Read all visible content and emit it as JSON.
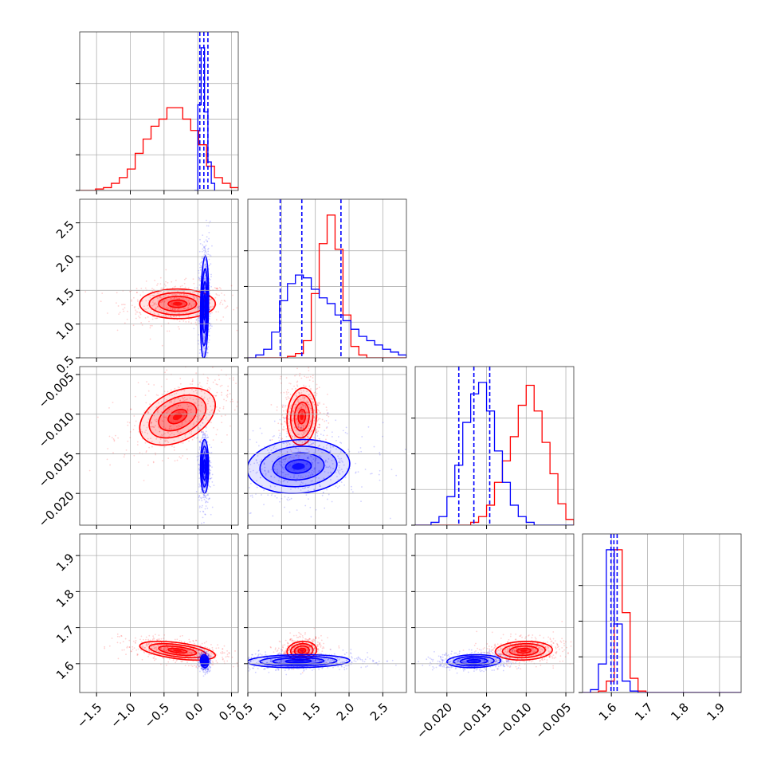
{
  "chart_data": {
    "type": "corner",
    "params": [
      {
        "lim": [
          -1.75,
          0.6
        ],
        "ticks": [
          -1.5,
          -1.0,
          -0.5,
          0.0,
          0.5
        ],
        "tick_labels": [
          "−1.5",
          "−1.0",
          "−0.5",
          "0.0",
          "0.5"
        ]
      },
      {
        "lim": [
          0.5,
          2.85
        ],
        "ticks": [
          0.5,
          1.0,
          1.5,
          2.0,
          2.5
        ],
        "tick_labels": [
          "0.5",
          "1.0",
          "1.5",
          "2.0",
          "2.5"
        ]
      },
      {
        "lim": [
          -0.024,
          -0.004
        ],
        "ticks": [
          -0.02,
          -0.015,
          -0.01,
          -0.005
        ],
        "tick_labels": [
          "−0.020",
          "−0.015",
          "−0.010",
          "−0.005"
        ]
      },
      {
        "lim": [
          1.52,
          1.96
        ],
        "ticks": [
          1.6,
          1.7,
          1.8,
          1.9
        ],
        "tick_labels": [
          "1.6",
          "1.7",
          "1.8",
          "1.9"
        ]
      }
    ],
    "colors": {
      "red": "#ff0000",
      "blue": "#0000ff",
      "grid": "#b0b0b0"
    },
    "grid": true,
    "series": [
      {
        "color": "red",
        "mean": [
          -0.3,
          1.3,
          -0.0103,
          1.636
        ],
        "sd": [
          0.28,
          0.11,
          0.0018,
          0.013
        ],
        "corr": {
          "0-1": 0.0,
          "0-2": 0.4,
          "0-3": -0.5,
          "1-2": 0.1,
          "1-3": 0.1,
          "2-3": 0.1
        },
        "hist": [
          {
            "edges": [
              -1.75,
              0.6
            ],
            "counts": [
              0,
              0,
              1,
              2,
              5,
              9,
              15,
              26,
              36,
              45,
              50,
              58,
              58,
              50,
              42,
              32,
              17,
              9,
              5,
              2
            ]
          },
          {
            "edges": [
              0.5,
              2.85
            ],
            "counts": [
              0,
              0,
              0,
              0,
              0,
              1,
              3,
              12,
              45,
              80,
              100,
              76,
              30,
              8,
              2,
              0,
              0,
              0,
              0,
              0
            ]
          },
          {
            "edges": [
              -0.024,
              -0.004
            ],
            "counts": [
              0,
              0,
              0,
              0,
              0,
              0,
              0,
              2,
              6,
              14,
              30,
              45,
              62,
              84,
              98,
              80,
              58,
              36,
              15,
              4
            ]
          },
          {
            "edges": [
              1.52,
              1.96
            ],
            "counts": [
              0,
              0,
              1,
              8,
              100,
              56,
              10,
              1,
              0,
              0,
              0,
              0,
              0,
              0,
              0,
              0,
              0,
              0,
              0,
              0
            ]
          }
        ]
      },
      {
        "color": "blue",
        "mean": [
          0.1,
          1.25,
          -0.0166,
          1.607
        ],
        "sd": [
          0.03,
          0.38,
          0.0017,
          0.009
        ],
        "corr": {
          "0-1": 0.2,
          "0-2": 0.0,
          "0-3": -0.1,
          "1-2": 0.1,
          "1-3": 0.1,
          "2-3": 0.1
        },
        "hist": [
          {
            "edges": [
              -0.05,
              0.25
            ],
            "counts": [
              0,
              60,
              100,
              55,
              20,
              5
            ]
          },
          {
            "edges": [
              0.5,
              2.85
            ],
            "counts": [
              0,
              2,
              6,
              18,
              40,
              52,
              58,
              56,
              48,
              42,
              38,
              30,
              26,
              20,
              15,
              12,
              9,
              6,
              4,
              2
            ]
          },
          {
            "edges": [
              -0.024,
              -0.004
            ],
            "counts": [
              0,
              0,
              2,
              6,
              20,
              42,
              72,
              92,
              100,
              80,
              52,
              30,
              14,
              6,
              2,
              0,
              0,
              0,
              0,
              0
            ]
          },
          {
            "edges": [
              1.52,
              1.96
            ],
            "counts": [
              0,
              2,
              20,
              100,
              48,
              8,
              1,
              0,
              0,
              0,
              0,
              0,
              0,
              0,
              0,
              0,
              0,
              0,
              0,
              0
            ]
          }
        ],
        "quantiles": [
          [
            0.03,
            0.09,
            0.15
          ],
          [
            0.98,
            1.3,
            1.88
          ],
          [
            -0.0185,
            -0.0166,
            -0.0146
          ],
          [
            1.599,
            1.607,
            1.616
          ]
        ]
      }
    ]
  }
}
